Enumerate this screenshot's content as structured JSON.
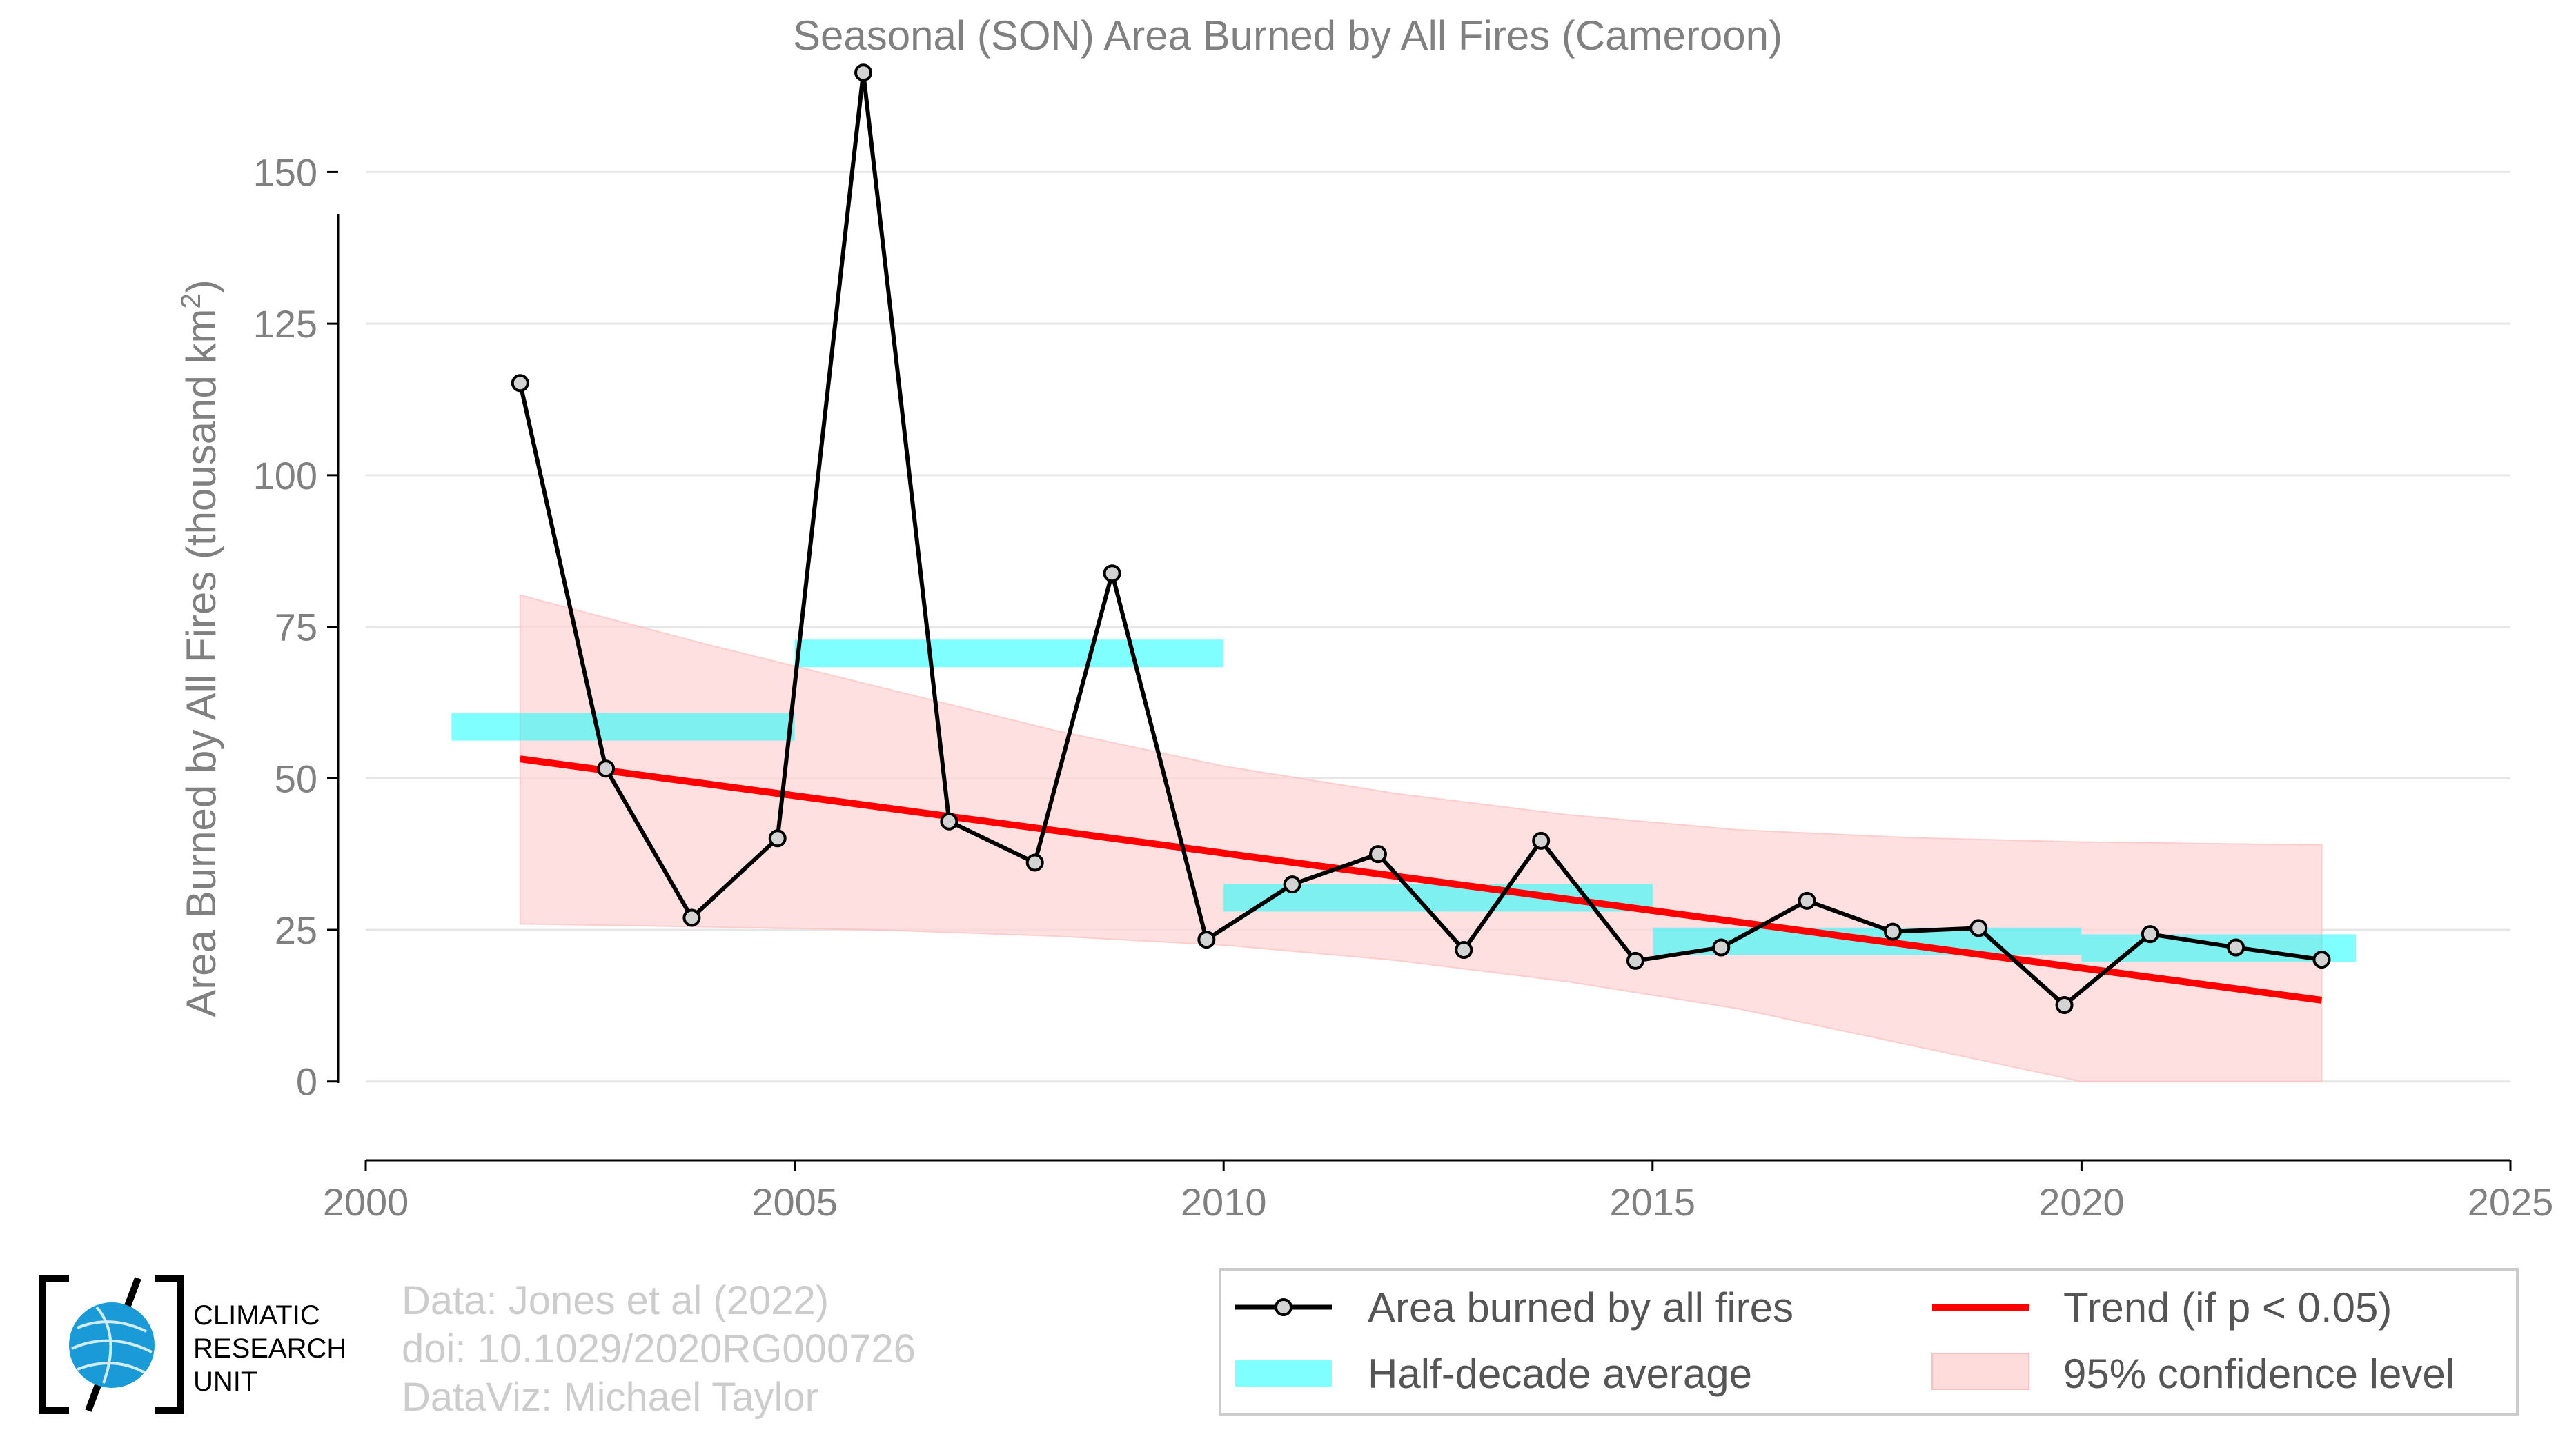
{
  "chart_data": {
    "type": "line",
    "title": "Seasonal (SON) Area Burned by All Fires (Cameroon)",
    "xlabel": "",
    "ylabel": "Area Burned by All Fires (thousand km",
    "ylabel_sup": "2",
    "ylabel_close": ")",
    "xlim": [
      2000,
      2025
    ],
    "ylim": [
      -13,
      167
    ],
    "xticks": [
      2000,
      2005,
      2010,
      2015,
      2020,
      2025
    ],
    "yticks": [
      0,
      25,
      50,
      75,
      100,
      125,
      150
    ],
    "grid": "horizontal",
    "series": [
      {
        "name": "Area burned by all fires",
        "color": "#000000",
        "marker_fill": "#d3d3d3",
        "points": [
          {
            "x": 2001.8,
            "y": 115.2
          },
          {
            "x": 2002.8,
            "y": 51.6
          },
          {
            "x": 2003.8,
            "y": 27.0
          },
          {
            "x": 2004.8,
            "y": 40.1
          },
          {
            "x": 2005.8,
            "y": 166.4
          },
          {
            "x": 2006.8,
            "y": 42.9
          },
          {
            "x": 2007.8,
            "y": 36.1
          },
          {
            "x": 2008.7,
            "y": 83.8
          },
          {
            "x": 2009.8,
            "y": 23.4
          },
          {
            "x": 2010.8,
            "y": 32.5
          },
          {
            "x": 2011.8,
            "y": 37.5
          },
          {
            "x": 2012.8,
            "y": 21.7
          },
          {
            "x": 2013.7,
            "y": 39.7
          },
          {
            "x": 2014.8,
            "y": 19.9
          },
          {
            "x": 2015.8,
            "y": 22.1
          },
          {
            "x": 2016.8,
            "y": 29.8
          },
          {
            "x": 2017.8,
            "y": 24.7
          },
          {
            "x": 2018.8,
            "y": 25.3
          },
          {
            "x": 2019.8,
            "y": 12.6
          },
          {
            "x": 2020.8,
            "y": 24.3
          },
          {
            "x": 2021.8,
            "y": 22.1
          },
          {
            "x": 2022.8,
            "y": 20.1
          }
        ]
      },
      {
        "name": "Half-decade average",
        "color": "#00ffff",
        "segments": [
          {
            "x0": 2001.0,
            "x1": 2005.0,
            "y": 58.5
          },
          {
            "x0": 2005.0,
            "x1": 2010.0,
            "y": 70.6
          },
          {
            "x0": 2010.0,
            "x1": 2015.0,
            "y": 30.3
          },
          {
            "x0": 2015.0,
            "x1": 2020.0,
            "y": 23.1
          },
          {
            "x0": 2020.0,
            "x1": 2023.2,
            "y": 22.0
          }
        ]
      },
      {
        "name": "Trend (if p < 0.05)",
        "color": "#ff0000",
        "points": [
          {
            "x": 2001.8,
            "y": 53.2
          },
          {
            "x": 2022.8,
            "y": 13.4
          }
        ]
      },
      {
        "name": "95% confidence level",
        "color": "#ffd6d6",
        "upper": [
          {
            "x": 2001.8,
            "y": 80.2
          },
          {
            "x": 2004.0,
            "y": 72.0
          },
          {
            "x": 2006.0,
            "y": 65.0
          },
          {
            "x": 2008.0,
            "y": 58.0
          },
          {
            "x": 2010.0,
            "y": 52.0
          },
          {
            "x": 2012.0,
            "y": 47.5
          },
          {
            "x": 2014.0,
            "y": 44.0
          },
          {
            "x": 2016.0,
            "y": 41.5
          },
          {
            "x": 2018.0,
            "y": 40.2
          },
          {
            "x": 2020.0,
            "y": 39.5
          },
          {
            "x": 2022.8,
            "y": 39.0
          }
        ],
        "lower": [
          {
            "x": 2001.8,
            "y": 26.0
          },
          {
            "x": 2004.0,
            "y": 25.5
          },
          {
            "x": 2006.0,
            "y": 25.0
          },
          {
            "x": 2008.0,
            "y": 24.0
          },
          {
            "x": 2010.0,
            "y": 22.5
          },
          {
            "x": 2012.0,
            "y": 20.0
          },
          {
            "x": 2014.0,
            "y": 16.5
          },
          {
            "x": 2016.0,
            "y": 12.0
          },
          {
            "x": 2018.0,
            "y": 6.0
          },
          {
            "x": 2020.0,
            "y": 0.0
          },
          {
            "x": 2022.8,
            "y": 0.0
          }
        ]
      }
    ],
    "legend": {
      "placement": "bottom-right",
      "entries": [
        "Area burned by all fires",
        "Trend (if p < 0.05)",
        "Half-decade average",
        "95% confidence level"
      ]
    }
  },
  "credits": {
    "line1": "Data: Jones et al (2022)",
    "line2": "doi: 10.1029/2020RG000726",
    "line3": "DataViz: Michael Taylor"
  },
  "logo": {
    "line1": "CLIMATIC",
    "line2": "RESEARCH",
    "line3": "UNIT",
    "globe_color": "#1a9ad6"
  }
}
